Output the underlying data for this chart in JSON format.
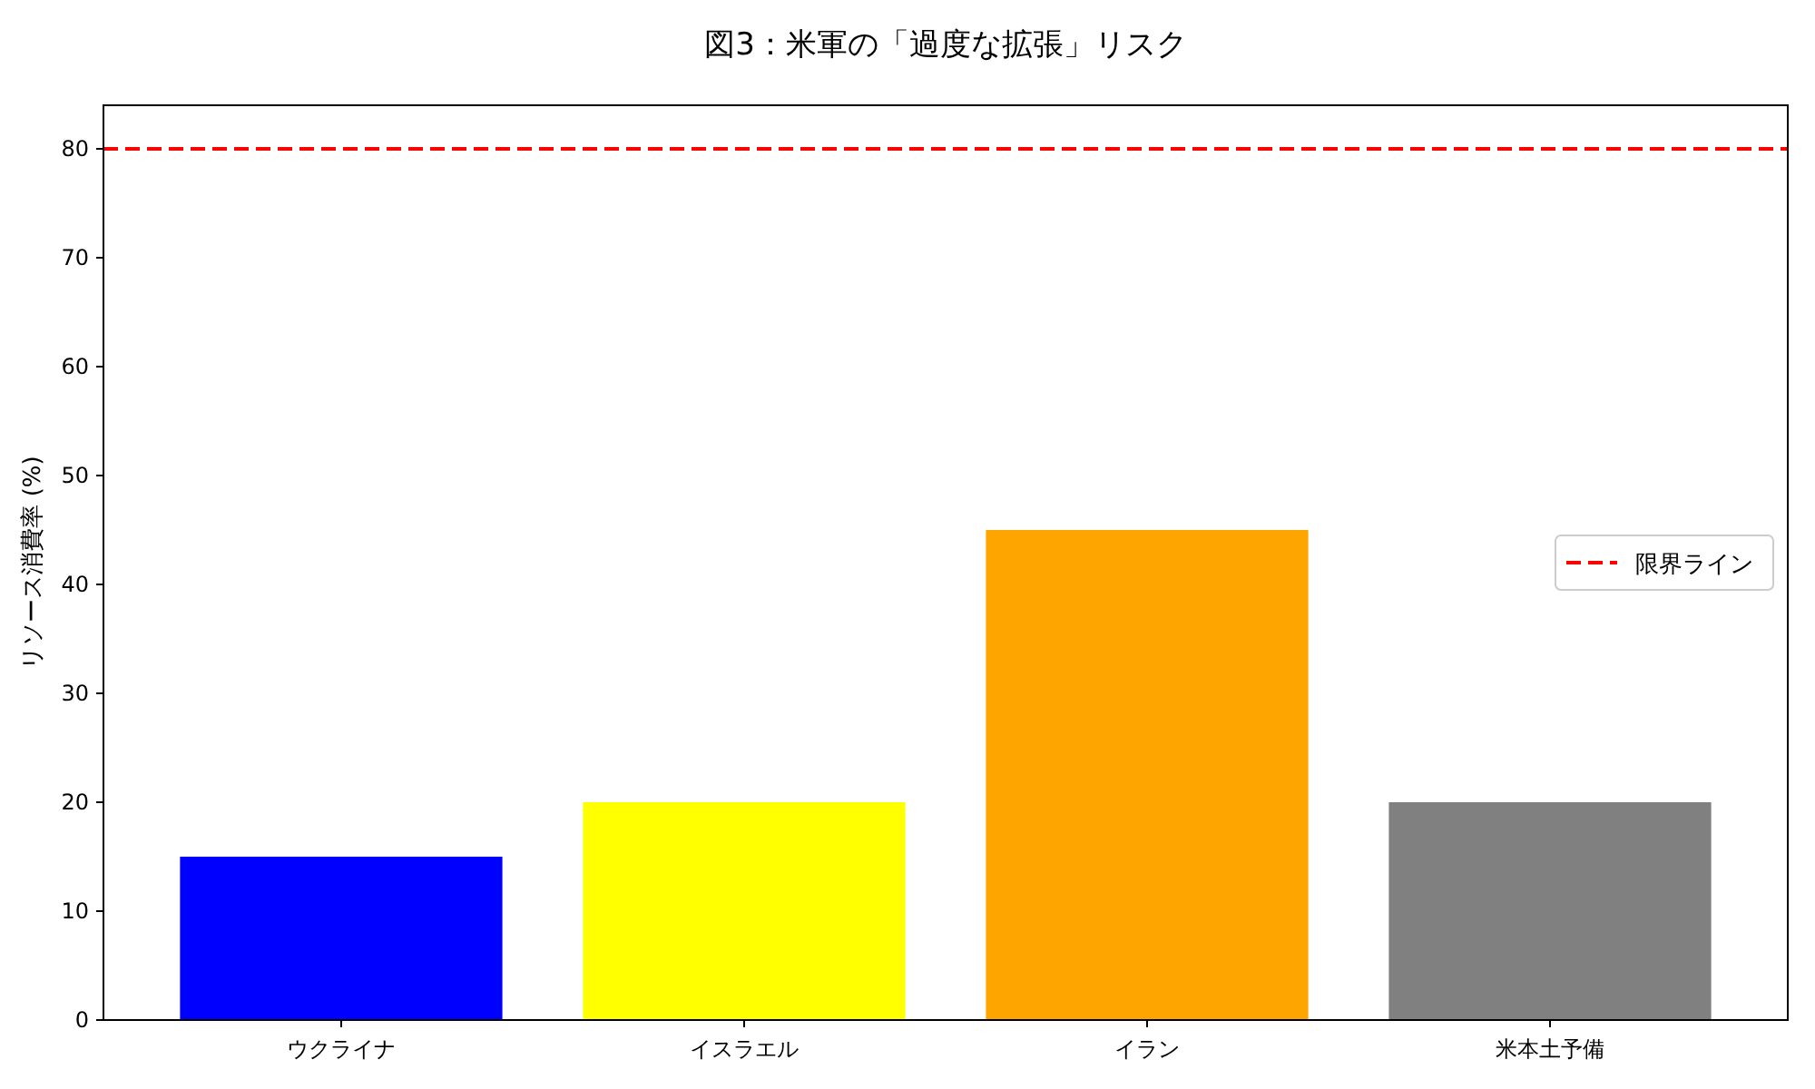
{
  "chart_data": {
    "type": "bar",
    "title": "図3：米軍の「過度な拡張」リスク",
    "ylabel": "リソース消費率 (%)",
    "categories": [
      "ウクライナ",
      "イスラエル",
      "イラン",
      "米本土予備"
    ],
    "values": [
      15,
      20,
      45,
      20
    ],
    "colors": [
      "#0000ff",
      "#ffff00",
      "#ffa500",
      "#808080"
    ],
    "ylim": [
      0,
      84
    ],
    "yticks": [
      0,
      10,
      20,
      30,
      40,
      50,
      60,
      70,
      80
    ],
    "ref_lines": [
      {
        "axis": "y",
        "value": 80,
        "label": "限界ライン",
        "color": "#ff0000",
        "line_style": "dashed"
      }
    ],
    "legend": "right"
  }
}
